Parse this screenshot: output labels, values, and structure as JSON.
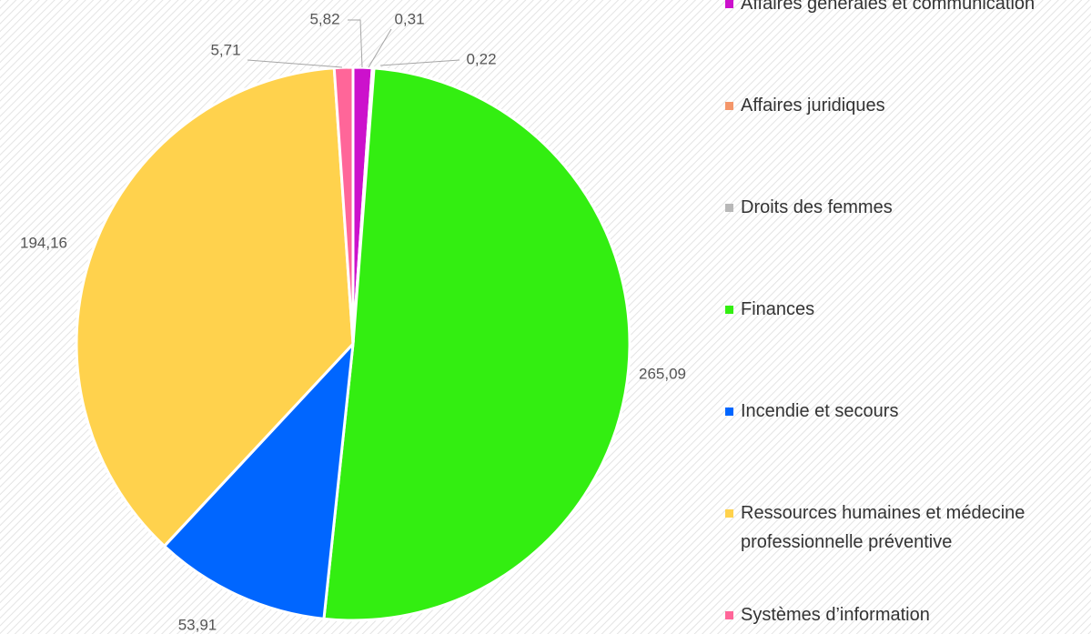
{
  "chart_data": {
    "type": "pie",
    "categories": [
      "Affaires générales et communication",
      "Affaires juridiques",
      "Droits des femmes",
      "Finances",
      "Incendie et secours",
      "Ressources humaines et médecine professionnelle préventive",
      "Systèmes d’information"
    ],
    "values": [
      5.82,
      0.31,
      0.22,
      265.09,
      53.91,
      194.16,
      5.71
    ],
    "value_labels": [
      "5,82",
      "0,31",
      "0,22",
      "265,09",
      "53,91",
      "194,16",
      "5,71"
    ],
    "colors": [
      "#cc11cc",
      "#f4966a",
      "#b8b8b8",
      "#33ee11",
      "#0066ff",
      "#ffd24d",
      "#ff6699"
    ]
  }
}
